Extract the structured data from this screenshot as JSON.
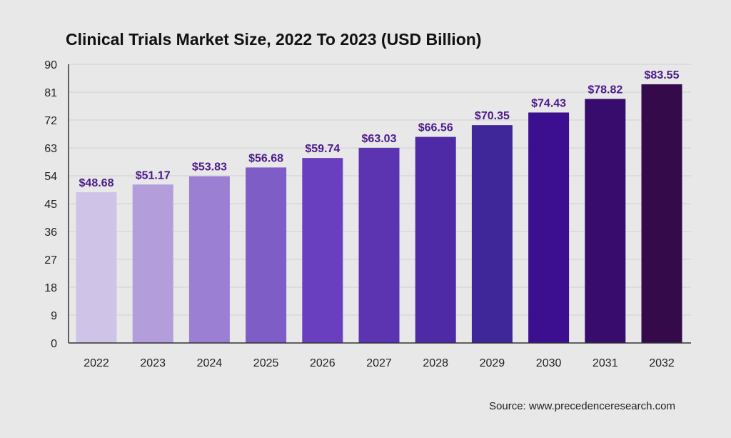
{
  "chart_data": {
    "type": "bar",
    "title": "Clinical Trials Market Size, 2022 To 2023 (USD Billion)",
    "xlabel": "",
    "ylabel": "",
    "categories": [
      "2022",
      "2023",
      "2024",
      "2025",
      "2026",
      "2027",
      "2028",
      "2029",
      "2030",
      "2031",
      "2032"
    ],
    "values": [
      48.68,
      51.17,
      53.83,
      56.68,
      59.74,
      63.03,
      66.56,
      70.35,
      74.43,
      78.82,
      83.55
    ],
    "data_labels": [
      "$48.68",
      "$51.17",
      "$53.83",
      "$56.68",
      "$59.74",
      "$63.03",
      "$66.56",
      "$70.35",
      "$74.43",
      "$78.82",
      "$83.55"
    ],
    "ylim": [
      0,
      90
    ],
    "yticks": [
      0,
      9,
      18,
      27,
      36,
      45,
      54,
      63,
      72,
      81,
      90
    ],
    "grid": true,
    "bar_colors": [
      "#cfc4e8",
      "#b39ddb",
      "#9a7fd3",
      "#7e5dc6",
      "#6a3fbf",
      "#5c33b0",
      "#4f2aa6",
      "#3f2699",
      "#3b0f8f",
      "#380c6c",
      "#350a4a"
    ],
    "label_color": "#4b1a8a",
    "source": "Source: www.precedenceresearch.com"
  }
}
